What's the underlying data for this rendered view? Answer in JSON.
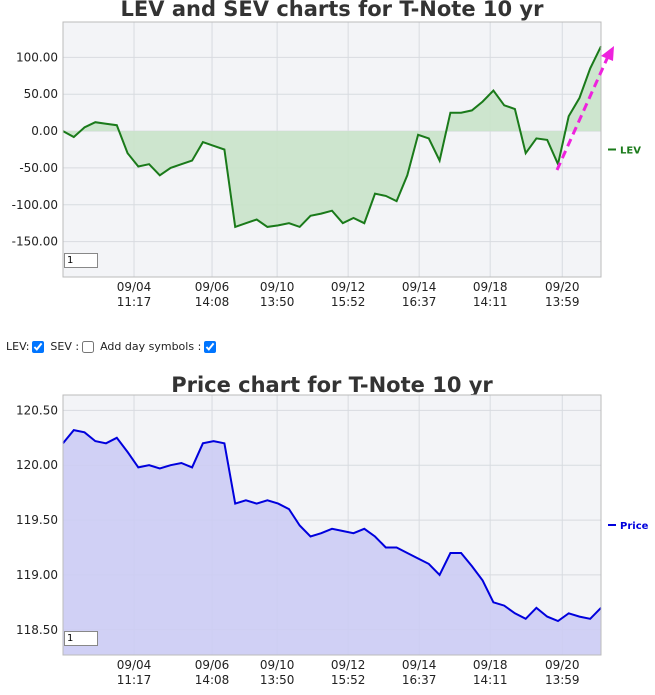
{
  "chart_data": [
    {
      "type": "line",
      "title": "LEV and SEV charts for T-Note 10 yr",
      "x": [
        0,
        2,
        4,
        6,
        8,
        10,
        12,
        14,
        16,
        18,
        20,
        22,
        24,
        26,
        28,
        30,
        32,
        34,
        36,
        38,
        40,
        42,
        44,
        46,
        48,
        50,
        52,
        54,
        56,
        58,
        60,
        62,
        64,
        66,
        68,
        70,
        72,
        74,
        76,
        78,
        80,
        82,
        84,
        86,
        88,
        90,
        92,
        94,
        96,
        98,
        100
      ],
      "series": [
        {
          "name": "LEV",
          "color": "#1a7a1a",
          "fill_color": "#c9e3c9",
          "values": [
            0,
            -8,
            5,
            12,
            10,
            8,
            -30,
            -48,
            -45,
            -60,
            -50,
            -45,
            -40,
            -15,
            -20,
            -25,
            -130,
            -125,
            -120,
            -130,
            -128,
            -125,
            -130,
            -115,
            -112,
            -108,
            -125,
            -118,
            -125,
            -85,
            -88,
            -95,
            -60,
            -5,
            -10,
            -40,
            25,
            25,
            28,
            40,
            55,
            35,
            30,
            -30,
            -10,
            -12,
            -45,
            20,
            45,
            85,
            115
          ]
        }
      ],
      "xlim": [
        0,
        100
      ],
      "xticks": [
        {
          "value": 13.2,
          "label": "09/04",
          "sublabel": "11:17"
        },
        {
          "value": 27.7,
          "label": "09/06",
          "sublabel": "14:08"
        },
        {
          "value": 39.8,
          "label": "09/10",
          "sublabel": "13:50"
        },
        {
          "value": 53.0,
          "label": "09/12",
          "sublabel": "15:52"
        },
        {
          "value": 66.2,
          "label": "09/14",
          "sublabel": "16:37"
        },
        {
          "value": 79.4,
          "label": "09/18",
          "sublabel": "14:11"
        },
        {
          "value": 92.8,
          "label": "09/20",
          "sublabel": "13:59"
        }
      ],
      "ylim": [
        -198,
        148
      ],
      "yticks": [
        {
          "value": 100,
          "label": "100.00"
        },
        {
          "value": 50,
          "label": "50.00"
        },
        {
          "value": 0,
          "label": "0.00"
        },
        {
          "value": -50,
          "label": "-50.00"
        },
        {
          "value": -100,
          "label": "-100.00"
        },
        {
          "value": -150,
          "label": "-150.00"
        }
      ],
      "grid": true,
      "zoom": "1"
    },
    {
      "type": "line",
      "title": "Price chart for T-Note 10 yr",
      "x": [
        0,
        2,
        4,
        6,
        8,
        10,
        12,
        14,
        16,
        18,
        20,
        22,
        24,
        26,
        28,
        30,
        32,
        34,
        36,
        38,
        40,
        42,
        44,
        46,
        48,
        50,
        52,
        54,
        56,
        58,
        60,
        62,
        64,
        66,
        68,
        70,
        72,
        74,
        76,
        78,
        80,
        82,
        84,
        86,
        88,
        90,
        92,
        94,
        96,
        98,
        100
      ],
      "series": [
        {
          "name": "Price",
          "color": "#0000dd",
          "fill_color": "#ccccf4",
          "values": [
            120.2,
            120.32,
            120.3,
            120.22,
            120.2,
            120.25,
            120.12,
            119.98,
            120.0,
            119.97,
            120.0,
            120.02,
            119.98,
            120.2,
            120.22,
            120.2,
            119.65,
            119.68,
            119.65,
            119.68,
            119.65,
            119.6,
            119.45,
            119.35,
            119.38,
            119.42,
            119.4,
            119.38,
            119.42,
            119.35,
            119.25,
            119.25,
            119.2,
            119.15,
            119.1,
            119.0,
            119.2,
            119.2,
            119.08,
            118.95,
            118.75,
            118.72,
            118.65,
            118.6,
            118.7,
            118.62,
            118.58,
            118.65,
            118.62,
            118.6,
            118.7
          ]
        }
      ],
      "xlim": [
        0,
        100
      ],
      "xticks": [
        {
          "value": 13.2,
          "label": "09/04",
          "sublabel": "11:17"
        },
        {
          "value": 27.7,
          "label": "09/06",
          "sublabel": "14:08"
        },
        {
          "value": 39.8,
          "label": "09/10",
          "sublabel": "13:50"
        },
        {
          "value": 53.0,
          "label": "09/12",
          "sublabel": "15:52"
        },
        {
          "value": 66.2,
          "label": "09/14",
          "sublabel": "16:37"
        },
        {
          "value": 79.4,
          "label": "09/18",
          "sublabel": "14:11"
        },
        {
          "value": 92.8,
          "label": "09/20",
          "sublabel": "13:59"
        }
      ],
      "ylim": [
        118.27,
        120.64
      ],
      "yticks": [
        {
          "value": 120.5,
          "label": "120.50"
        },
        {
          "value": 120,
          "label": "120.00"
        },
        {
          "value": 119.5,
          "label": "119.50"
        },
        {
          "value": 119,
          "label": "119.00"
        },
        {
          "value": 118.5,
          "label": "118.50"
        }
      ],
      "grid": true,
      "zoom": "1"
    }
  ],
  "controls": {
    "lev": "LEV:",
    "sev": "SEV :",
    "day_symbols": "Add day symbols :"
  }
}
